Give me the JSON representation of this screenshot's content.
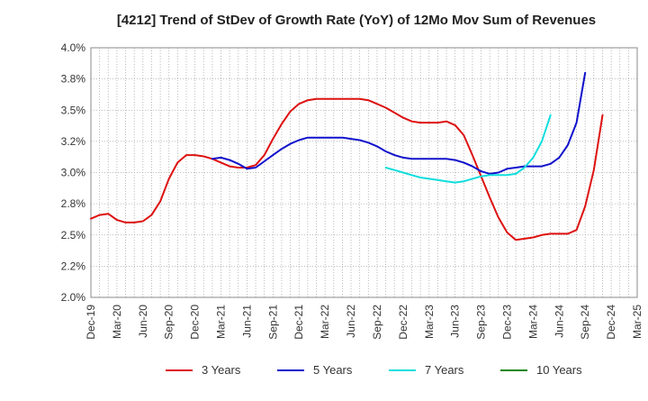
{
  "chart_data": {
    "type": "line",
    "title": "[4212]  Trend of StDev of Growth Rate (YoY) of 12Mo Mov Sum of Revenues",
    "xlabel": "",
    "ylabel": "",
    "ylim": [
      2.0,
      4.0
    ],
    "yticks": [
      "4.0%",
      "3.8%",
      "3.5%",
      "3.2%",
      "3.0%",
      "2.8%",
      "2.5%",
      "2.2%",
      "2.0%"
    ],
    "ytick_values": [
      4.0,
      3.75,
      3.5,
      3.25,
      3.0,
      2.75,
      2.5,
      2.25,
      2.0
    ],
    "xticks": [
      "Dec-19",
      "Mar-20",
      "Jun-20",
      "Sep-20",
      "Dec-20",
      "Mar-21",
      "Jun-21",
      "Sep-21",
      "Dec-21",
      "Mar-22",
      "Jun-22",
      "Sep-22",
      "Dec-22",
      "Mar-23",
      "Jun-23",
      "Sep-23",
      "Dec-23",
      "Mar-24",
      "Jun-24",
      "Sep-24",
      "Dec-24",
      "Mar-25"
    ],
    "x_unit": "month index from Dec-19",
    "grid": true,
    "legend_position": "bottom",
    "series": [
      {
        "name": "3 Years",
        "color": "#dd1111",
        "points": [
          [
            0,
            2.63
          ],
          [
            1,
            2.66
          ],
          [
            2,
            2.67
          ],
          [
            3,
            2.62
          ],
          [
            4,
            2.6
          ],
          [
            5,
            2.6
          ],
          [
            6,
            2.61
          ],
          [
            7,
            2.66
          ],
          [
            8,
            2.77
          ],
          [
            9,
            2.95
          ],
          [
            10,
            3.08
          ],
          [
            11,
            3.14
          ],
          [
            12,
            3.14
          ],
          [
            13,
            3.13
          ],
          [
            14,
            3.11
          ],
          [
            15,
            3.08
          ],
          [
            16,
            3.05
          ],
          [
            17,
            3.04
          ],
          [
            18,
            3.04
          ],
          [
            19,
            3.06
          ],
          [
            20,
            3.14
          ],
          [
            21,
            3.27
          ],
          [
            22,
            3.39
          ],
          [
            23,
            3.49
          ],
          [
            24,
            3.55
          ],
          [
            25,
            3.58
          ],
          [
            26,
            3.59
          ],
          [
            27,
            3.59
          ],
          [
            28,
            3.59
          ],
          [
            29,
            3.59
          ],
          [
            30,
            3.59
          ],
          [
            31,
            3.59
          ],
          [
            32,
            3.58
          ],
          [
            33,
            3.55
          ],
          [
            34,
            3.52
          ],
          [
            35,
            3.48
          ],
          [
            36,
            3.44
          ],
          [
            37,
            3.41
          ],
          [
            38,
            3.4
          ],
          [
            39,
            3.4
          ],
          [
            40,
            3.4
          ],
          [
            41,
            3.41
          ],
          [
            42,
            3.38
          ],
          [
            43,
            3.3
          ],
          [
            44,
            3.14
          ],
          [
            45,
            2.97
          ],
          [
            46,
            2.8
          ],
          [
            47,
            2.64
          ],
          [
            48,
            2.52
          ],
          [
            49,
            2.46
          ],
          [
            50,
            2.47
          ],
          [
            51,
            2.48
          ],
          [
            52,
            2.5
          ],
          [
            53,
            2.51
          ],
          [
            54,
            2.51
          ],
          [
            55,
            2.51
          ],
          [
            56,
            2.54
          ],
          [
            57,
            2.73
          ],
          [
            58,
            3.02
          ],
          [
            59,
            3.46
          ]
        ]
      },
      {
        "name": "5 Years",
        "color": "#1111cc",
        "points": [
          [
            14,
            3.11
          ],
          [
            15,
            3.12
          ],
          [
            16,
            3.1
          ],
          [
            17,
            3.07
          ],
          [
            18,
            3.03
          ],
          [
            19,
            3.04
          ],
          [
            20,
            3.09
          ],
          [
            21,
            3.14
          ],
          [
            22,
            3.19
          ],
          [
            23,
            3.23
          ],
          [
            24,
            3.26
          ],
          [
            25,
            3.28
          ],
          [
            26,
            3.28
          ],
          [
            27,
            3.28
          ],
          [
            28,
            3.28
          ],
          [
            29,
            3.28
          ],
          [
            30,
            3.27
          ],
          [
            31,
            3.26
          ],
          [
            32,
            3.24
          ],
          [
            33,
            3.21
          ],
          [
            34,
            3.17
          ],
          [
            35,
            3.14
          ],
          [
            36,
            3.12
          ],
          [
            37,
            3.11
          ],
          [
            38,
            3.11
          ],
          [
            39,
            3.11
          ],
          [
            40,
            3.11
          ],
          [
            41,
            3.11
          ],
          [
            42,
            3.1
          ],
          [
            43,
            3.08
          ],
          [
            44,
            3.05
          ],
          [
            45,
            3.01
          ],
          [
            46,
            2.99
          ],
          [
            47,
            3.0
          ],
          [
            48,
            3.03
          ],
          [
            49,
            3.04
          ],
          [
            50,
            3.05
          ],
          [
            51,
            3.05
          ],
          [
            52,
            3.05
          ],
          [
            53,
            3.07
          ],
          [
            54,
            3.12
          ],
          [
            55,
            3.22
          ],
          [
            56,
            3.4
          ],
          [
            57,
            3.8
          ]
        ]
      },
      {
        "name": "7 Years",
        "color": "#11dddd",
        "points": [
          [
            34,
            3.04
          ],
          [
            35,
            3.02
          ],
          [
            36,
            3.0
          ],
          [
            37,
            2.98
          ],
          [
            38,
            2.96
          ],
          [
            39,
            2.95
          ],
          [
            40,
            2.94
          ],
          [
            41,
            2.93
          ],
          [
            42,
            2.92
          ],
          [
            43,
            2.93
          ],
          [
            44,
            2.95
          ],
          [
            45,
            2.97
          ],
          [
            46,
            2.98
          ],
          [
            47,
            2.98
          ],
          [
            48,
            2.98
          ],
          [
            49,
            2.99
          ],
          [
            50,
            3.04
          ],
          [
            51,
            3.12
          ],
          [
            52,
            3.25
          ],
          [
            53,
            3.46
          ]
        ]
      },
      {
        "name": "10 Years",
        "color": "#118811",
        "points": []
      }
    ]
  }
}
